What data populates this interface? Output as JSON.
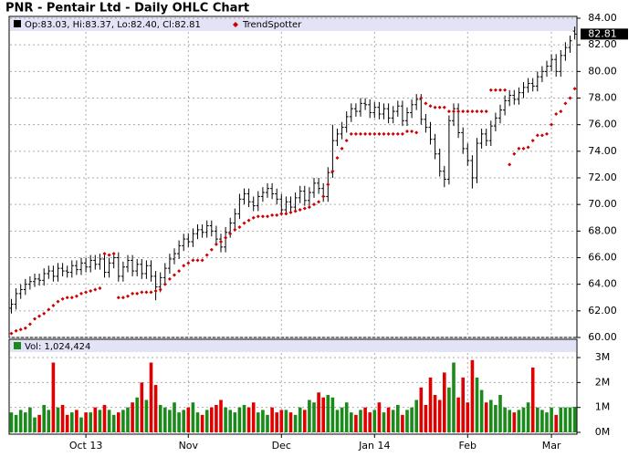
{
  "chart_data": [
    {
      "type": "ohlc",
      "title": "PNR - Pentair Ltd - Daily OHLC Chart",
      "legend_text": "Op:83.03, Hi:83.37, Lo:82.40, Cl:82.81",
      "color": "#000000",
      "open": [
        62.2,
        62.5,
        63.3,
        63.6,
        64.0,
        64.2,
        64.4,
        64.3,
        64.8,
        65.0,
        64.6,
        65.2,
        65.0,
        64.9,
        65.4,
        65.1,
        65.6,
        65.3,
        65.8,
        65.5,
        65.9,
        64.9,
        65.6,
        66.0,
        64.6,
        65.3,
        65.8,
        65.0,
        65.5,
        64.8,
        65.4,
        64.6,
        63.8,
        64.5,
        65.2,
        65.9,
        66.3,
        66.9,
        67.4,
        67.2,
        67.8,
        68.1,
        67.9,
        68.4,
        68.0,
        67.4,
        66.8,
        67.9,
        68.6,
        69.3,
        70.4,
        70.8,
        70.2,
        69.9,
        70.6,
        70.9,
        71.2,
        70.8,
        70.4,
        69.6,
        70.2,
        69.8,
        70.5,
        71.0,
        70.3,
        70.9,
        71.6,
        71.2,
        70.6,
        72.4,
        74.8,
        75.3,
        75.8,
        76.6,
        77.2,
        77.0,
        77.6,
        77.5,
        76.9,
        77.3,
        76.8,
        77.2,
        76.5,
        77.0,
        77.4,
        76.3,
        76.9,
        77.5,
        77.9,
        76.4,
        75.8,
        74.9,
        73.8,
        72.5,
        71.9,
        76.3,
        77.2,
        75.4,
        74.2,
        73.3,
        72.0,
        74.6,
        75.3,
        74.8,
        75.9,
        76.5,
        77.1,
        77.8,
        78.2,
        77.9,
        78.4,
        78.8,
        79.1,
        78.9,
        79.6,
        80.0,
        80.4,
        80.9,
        80.0,
        81.2,
        81.8,
        83.03
      ],
      "high": [
        62.9,
        63.7,
        64.0,
        64.4,
        64.6,
        64.8,
        64.8,
        65.2,
        65.4,
        65.4,
        65.6,
        65.6,
        65.4,
        65.8,
        65.8,
        66.0,
        66.0,
        66.2,
        66.2,
        66.3,
        66.3,
        66.0,
        66.4,
        66.4,
        65.7,
        66.2,
        66.2,
        65.9,
        65.9,
        65.8,
        65.8,
        65.0,
        64.9,
        65.6,
        66.3,
        66.7,
        67.3,
        67.8,
        67.8,
        68.2,
        68.5,
        68.5,
        68.8,
        68.8,
        68.4,
        67.8,
        68.3,
        69.0,
        69.7,
        70.8,
        71.2,
        71.2,
        70.6,
        71.0,
        71.3,
        71.6,
        71.6,
        71.2,
        70.8,
        70.6,
        70.6,
        70.9,
        71.4,
        71.4,
        71.3,
        72.0,
        72.0,
        71.6,
        72.8,
        76.0,
        75.7,
        76.2,
        77.0,
        77.6,
        77.6,
        78.0,
        78.0,
        77.9,
        77.7,
        77.7,
        77.6,
        77.6,
        77.4,
        77.8,
        77.8,
        77.3,
        77.9,
        78.3,
        78.3,
        76.8,
        76.2,
        75.3,
        74.2,
        72.9,
        76.7,
        77.6,
        77.6,
        75.8,
        74.6,
        73.7,
        75.0,
        75.7,
        75.7,
        76.3,
        76.9,
        77.5,
        78.2,
        78.6,
        78.6,
        78.8,
        79.2,
        79.5,
        79.5,
        80.0,
        80.4,
        80.8,
        81.3,
        81.3,
        81.6,
        82.2,
        82.7,
        83.37
      ],
      "low": [
        61.8,
        62.1,
        62.9,
        63.2,
        63.6,
        63.8,
        63.9,
        63.9,
        64.4,
        64.2,
        64.2,
        64.6,
        64.5,
        64.5,
        64.7,
        64.7,
        64.9,
        64.9,
        65.1,
        65.1,
        64.5,
        64.5,
        65.2,
        64.2,
        64.2,
        64.9,
        64.6,
        64.6,
        64.4,
        64.4,
        64.2,
        62.8,
        63.4,
        64.1,
        64.8,
        65.5,
        65.9,
        66.5,
        66.8,
        66.8,
        67.4,
        67.5,
        67.5,
        67.6,
        67.0,
        66.4,
        66.4,
        67.5,
        68.2,
        68.9,
        70.0,
        69.8,
        69.5,
        69.5,
        70.2,
        70.5,
        70.4,
        70.0,
        69.2,
        69.2,
        69.4,
        69.4,
        70.1,
        69.9,
        69.9,
        70.5,
        70.8,
        70.2,
        70.2,
        72.0,
        74.4,
        74.9,
        75.4,
        76.2,
        76.6,
        76.6,
        77.1,
        76.5,
        76.5,
        76.4,
        76.4,
        76.1,
        76.1,
        76.6,
        75.9,
        75.9,
        76.5,
        77.1,
        76.0,
        75.4,
        74.5,
        73.4,
        72.1,
        71.3,
        71.5,
        75.9,
        75.0,
        73.8,
        72.9,
        71.2,
        71.6,
        74.2,
        74.4,
        74.4,
        75.5,
        76.1,
        76.7,
        77.4,
        77.5,
        77.5,
        78.0,
        78.4,
        78.5,
        78.5,
        79.2,
        79.6,
        80.0,
        79.6,
        79.6,
        80.8,
        81.4,
        82.4
      ],
      "close": [
        62.5,
        63.3,
        63.6,
        64.0,
        64.2,
        64.4,
        64.3,
        64.8,
        65.0,
        64.6,
        65.2,
        65.0,
        64.9,
        65.4,
        65.1,
        65.6,
        65.3,
        65.8,
        65.5,
        65.9,
        64.9,
        65.6,
        66.0,
        64.6,
        65.3,
        65.8,
        65.0,
        65.5,
        64.8,
        65.4,
        64.6,
        63.8,
        64.5,
        65.2,
        65.9,
        66.3,
        66.9,
        67.4,
        67.2,
        67.8,
        68.1,
        67.9,
        68.4,
        68.0,
        67.4,
        66.8,
        67.9,
        68.6,
        69.3,
        70.4,
        70.8,
        70.2,
        69.9,
        70.6,
        70.9,
        71.2,
        70.8,
        70.4,
        69.6,
        70.2,
        69.8,
        70.5,
        71.0,
        70.3,
        70.9,
        71.6,
        71.2,
        70.6,
        72.4,
        74.8,
        75.3,
        75.8,
        76.6,
        77.2,
        77.0,
        77.6,
        77.5,
        76.9,
        77.3,
        76.8,
        77.2,
        76.5,
        77.0,
        77.4,
        76.3,
        76.9,
        77.5,
        77.9,
        76.4,
        75.8,
        74.9,
        73.8,
        72.5,
        71.9,
        76.3,
        77.2,
        75.4,
        74.2,
        73.3,
        72.0,
        74.6,
        75.3,
        74.8,
        75.9,
        76.5,
        77.1,
        77.8,
        78.2,
        77.9,
        78.4,
        78.8,
        79.1,
        78.9,
        79.6,
        80.0,
        80.4,
        80.9,
        80.0,
        81.2,
        81.8,
        82.3,
        82.81
      ],
      "overlay": {
        "name": "TrendSpotter",
        "color": "#cc0000",
        "values": [
          60.3,
          60.5,
          60.6,
          60.7,
          61.0,
          61.4,
          61.6,
          61.8,
          62.1,
          62.4,
          62.7,
          62.9,
          63.0,
          63.0,
          63.1,
          63.3,
          63.4,
          63.5,
          63.6,
          63.7,
          66.3,
          66.2,
          66.3,
          63.0,
          63.0,
          63.1,
          63.3,
          63.3,
          63.4,
          63.4,
          63.4,
          63.5,
          63.6,
          64.0,
          64.4,
          64.7,
          65.0,
          65.4,
          65.6,
          65.8,
          65.8,
          65.8,
          66.2,
          66.6,
          67.0,
          67.2,
          67.5,
          67.8,
          68.1,
          68.3,
          68.6,
          68.8,
          69.0,
          69.1,
          69.1,
          69.1,
          69.2,
          69.2,
          69.3,
          69.3,
          69.4,
          69.5,
          69.6,
          69.7,
          69.8,
          70.0,
          70.2,
          70.6,
          71.5,
          72.5,
          73.5,
          74.2,
          74.8,
          75.3,
          75.3,
          75.3,
          75.3,
          75.3,
          75.3,
          75.3,
          75.3,
          75.3,
          75.3,
          75.3,
          75.3,
          75.5,
          75.5,
          75.4,
          78.0,
          77.6,
          77.4,
          77.3,
          77.3,
          77.3,
          77.0,
          77.0,
          77.0,
          77.0,
          77.0,
          77.0,
          77.0,
          77.0,
          77.0,
          78.6,
          78.6,
          78.6,
          78.6,
          73.0,
          73.8,
          74.2,
          74.2,
          74.3,
          74.8,
          75.2,
          75.2,
          75.3,
          76.0,
          76.8,
          77.0,
          77.6,
          78.0,
          78.7
        ]
      },
      "ylim": [
        60,
        84
      ],
      "yticks": [
        {
          "value": 60,
          "label": "60.00"
        },
        {
          "value": 62,
          "label": "62.00"
        },
        {
          "value": 64,
          "label": "64.00"
        },
        {
          "value": 66,
          "label": "66.00"
        },
        {
          "value": 68,
          "label": "68.00"
        },
        {
          "value": 70,
          "label": "70.00"
        },
        {
          "value": 72,
          "label": "72.00"
        },
        {
          "value": 74,
          "label": "74.00"
        },
        {
          "value": 76,
          "label": "76.00"
        },
        {
          "value": 78,
          "label": "78.00"
        },
        {
          "value": 80,
          "label": "80.00"
        },
        {
          "value": 82,
          "label": "82.00"
        },
        {
          "value": 84,
          "label": "84.00"
        }
      ],
      "grid": true
    },
    {
      "type": "bar",
      "legend_text": "Vol: 1,024,424",
      "up_color": "#1a8a1a",
      "down_color": "#e00000",
      "categories": [
        null,
        null,
        null,
        null,
        null,
        null,
        null,
        null,
        null,
        null,
        null,
        null,
        null,
        null,
        null,
        null,
        "Oct 13",
        null,
        null,
        null,
        null,
        null,
        null,
        null,
        null,
        null,
        null,
        null,
        null,
        null,
        null,
        null,
        null,
        null,
        null,
        null,
        null,
        null,
        "Nov",
        null,
        null,
        null,
        null,
        null,
        null,
        null,
        null,
        null,
        null,
        null,
        null,
        null,
        null,
        null,
        null,
        null,
        null,
        null,
        "Dec",
        null,
        null,
        null,
        null,
        null,
        null,
        null,
        null,
        null,
        null,
        null,
        null,
        null,
        null,
        null,
        null,
        null,
        null,
        null,
        "Jan 14",
        null,
        null,
        null,
        null,
        null,
        null,
        null,
        null,
        null,
        null,
        null,
        null,
        null,
        null,
        null,
        null,
        null,
        null,
        null,
        "Feb",
        null,
        null,
        null,
        null,
        null,
        null,
        null,
        null,
        null,
        null,
        null,
        null,
        null,
        null,
        null,
        null,
        null,
        "Mar",
        null,
        null,
        null,
        null,
        null
      ],
      "values": [
        0.8,
        0.7,
        0.9,
        0.8,
        1.0,
        0.6,
        0.7,
        1.1,
        0.9,
        2.8,
        1.0,
        1.1,
        0.7,
        0.8,
        0.9,
        0.6,
        0.8,
        0.8,
        1.0,
        0.9,
        1.1,
        0.9,
        0.7,
        0.8,
        0.9,
        1.0,
        1.2,
        1.4,
        2.0,
        1.3,
        2.8,
        1.9,
        1.1,
        1.0,
        0.9,
        1.2,
        0.8,
        0.9,
        1.0,
        1.2,
        0.8,
        0.7,
        0.9,
        1.0,
        1.1,
        1.3,
        1.0,
        0.9,
        0.8,
        1.0,
        1.1,
        1.0,
        1.2,
        0.8,
        0.9,
        0.7,
        1.0,
        0.8,
        0.9,
        0.9,
        0.8,
        0.7,
        1.0,
        0.9,
        1.3,
        1.2,
        1.6,
        1.4,
        1.5,
        1.4,
        0.9,
        1.0,
        1.2,
        0.8,
        0.7,
        0.9,
        1.0,
        0.8,
        0.9,
        1.2,
        0.8,
        1.0,
        0.9,
        1.1,
        0.7,
        0.9,
        1.0,
        1.3,
        1.8,
        1.1,
        2.2,
        1.5,
        1.3,
        2.4,
        1.8,
        2.8,
        1.4,
        2.2,
        1.2,
        2.9,
        2.2,
        1.7,
        1.2,
        1.3,
        1.1,
        1.5,
        1.0,
        0.9,
        0.8,
        0.9,
        1.0,
        1.2,
        2.6,
        1.0,
        0.9,
        0.8,
        1.0,
        0.7,
        1.0,
        1.0,
        1.0,
        1.024424
      ],
      "ylim": [
        0,
        3.66
      ],
      "yticks": [
        {
          "value": 0,
          "label": "0M"
        },
        {
          "value": 1,
          "label": "1M"
        },
        {
          "value": 2,
          "label": "2M"
        },
        {
          "value": 3,
          "label": "3M"
        }
      ],
      "grid": true
    }
  ]
}
